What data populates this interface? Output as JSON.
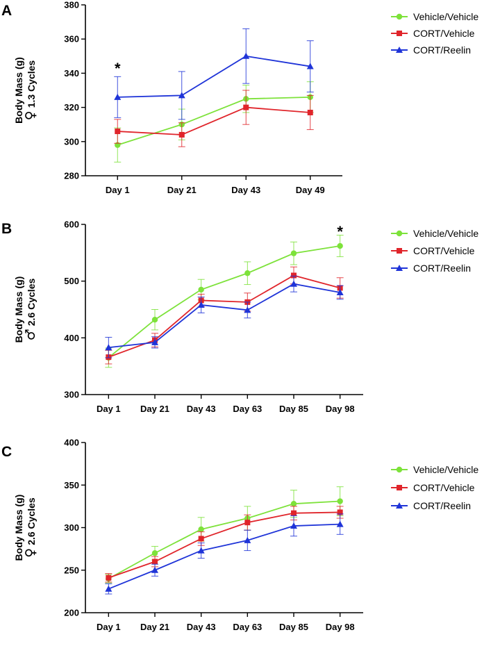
{
  "colors": {
    "Vehicle/Vehicle": "#7de23a",
    "CORT/Vehicle": "#e0252b",
    "CORT/Reelin": "#1f34d8"
  },
  "chart_data": [
    {
      "panel": "A",
      "type": "line",
      "ylabel": "Body Mass (g)",
      "sublabel_symbol": "♀",
      "sublabel": "1.3 Cycles",
      "categories": [
        "Day 1",
        "Day 21",
        "Day 43",
        "Day 49"
      ],
      "ylim": [
        280,
        380
      ],
      "yticks": [
        280,
        300,
        320,
        340,
        360,
        380
      ],
      "series": [
        {
          "name": "Vehicle/Vehicle",
          "marker": "circle",
          "values": [
            298,
            310,
            325,
            326
          ],
          "errors": [
            10,
            9,
            8,
            9
          ]
        },
        {
          "name": "CORT/Vehicle",
          "marker": "square",
          "values": [
            306,
            304,
            320,
            317
          ],
          "errors": [
            7,
            7,
            10,
            10
          ]
        },
        {
          "name": "CORT/Reelin",
          "marker": "triangle",
          "values": [
            326,
            327,
            350,
            344
          ],
          "errors": [
            12,
            14,
            16,
            15
          ]
        }
      ],
      "annotations": [
        {
          "category": "Day 1",
          "value": 343,
          "text": "*"
        }
      ],
      "legend": [
        "Vehicle/Vehicle",
        "CORT/Vehicle",
        "CORT/Reelin"
      ]
    },
    {
      "panel": "B",
      "type": "line",
      "ylabel": "Body Mass (g)",
      "sublabel_symbol": "♂",
      "sublabel": "2.6 Cycles",
      "categories": [
        "Day 1",
        "Day 21",
        "Day 43",
        "Day 63",
        "Day 85",
        "Day 98"
      ],
      "ylim": [
        300,
        600
      ],
      "yticks": [
        300,
        400,
        500,
        600
      ],
      "series": [
        {
          "name": "Vehicle/Vehicle",
          "marker": "circle",
          "values": [
            365,
            432,
            485,
            514,
            549,
            562
          ],
          "errors": [
            17,
            18,
            18,
            20,
            20,
            19
          ]
        },
        {
          "name": "CORT/Vehicle",
          "marker": "square",
          "values": [
            366,
            396,
            466,
            463,
            510,
            488
          ],
          "errors": [
            12,
            12,
            11,
            16,
            15,
            18
          ]
        },
        {
          "name": "CORT/Reelin",
          "marker": "triangle",
          "values": [
            383,
            392,
            458,
            449,
            495,
            480
          ],
          "errors": [
            18,
            10,
            14,
            14,
            14,
            12
          ]
        }
      ],
      "annotations": [
        {
          "category": "Day 98",
          "value": 588,
          "text": "*"
        }
      ],
      "legend": [
        "Vehicle/Vehicle",
        "CORT/Vehicle",
        "CORT/Reelin"
      ]
    },
    {
      "panel": "C",
      "type": "line",
      "ylabel": "Body Mass (g)",
      "sublabel_symbol": "♀",
      "sublabel": "2.6 Cycles",
      "categories": [
        "Day 1",
        "Day 21",
        "Day 43",
        "Day 63",
        "Day 85",
        "Day 98"
      ],
      "ylim": [
        200,
        400
      ],
      "yticks": [
        200,
        250,
        300,
        350,
        400
      ],
      "series": [
        {
          "name": "Vehicle/Vehicle",
          "marker": "circle",
          "values": [
            240,
            270,
            298,
            311,
            328,
            331
          ],
          "errors": [
            5,
            8,
            14,
            14,
            16,
            17
          ]
        },
        {
          "name": "CORT/Vehicle",
          "marker": "square",
          "values": [
            241,
            260,
            287,
            306,
            317,
            318
          ],
          "errors": [
            5,
            6,
            8,
            9,
            8,
            7
          ]
        },
        {
          "name": "CORT/Reelin",
          "marker": "triangle",
          "values": [
            228,
            250,
            273,
            285,
            302,
            304
          ],
          "errors": [
            6,
            7,
            9,
            12,
            12,
            12
          ]
        }
      ],
      "annotations": [],
      "legend": [
        "Vehicle/Vehicle",
        "CORT/Vehicle",
        "CORT/Reelin"
      ]
    }
  ]
}
